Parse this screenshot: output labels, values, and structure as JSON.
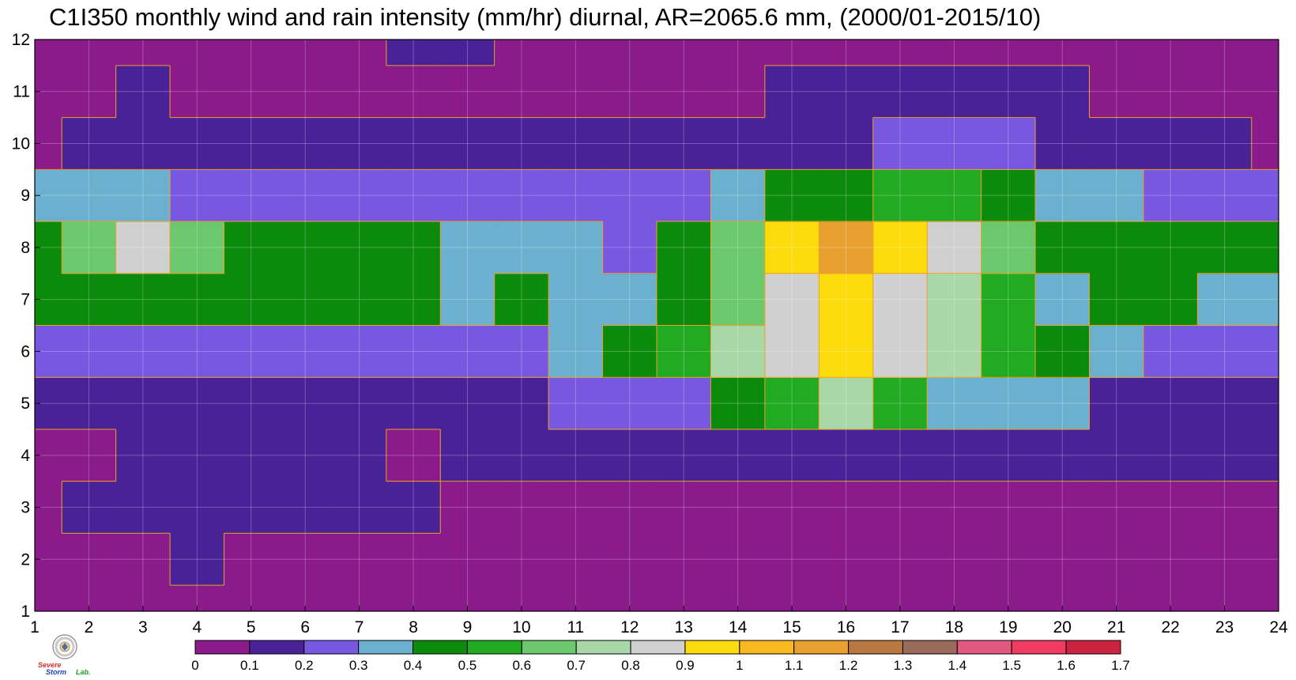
{
  "chart_data": {
    "type": "heatmap",
    "title": "C1I350 monthly wind and rain intensity (mm/hr) diurnal, AR=2065.6 mm, (2000/01-2015/10)",
    "xlabel": "",
    "ylabel": "",
    "x_ticks": [
      1,
      2,
      3,
      4,
      5,
      6,
      7,
      8,
      9,
      10,
      11,
      12,
      13,
      14,
      15,
      16,
      17,
      18,
      19,
      20,
      21,
      22,
      23,
      24
    ],
    "y_ticks": [
      1,
      2,
      3,
      4,
      5,
      6,
      7,
      8,
      9,
      10,
      11,
      12
    ],
    "xlim": [
      1,
      24
    ],
    "ylim": [
      1,
      12
    ],
    "grid": true,
    "contour_levels": [
      0,
      0.1,
      0.2,
      0.3,
      0.4,
      0.5,
      0.6,
      0.7,
      0.8,
      0.9,
      1,
      1.1,
      1.2,
      1.3,
      1.4,
      1.5,
      1.6,
      1.7
    ],
    "colorbar_tick_labels": [
      "0",
      "0.1",
      "0.2",
      "0.3",
      "0.4",
      "0.5",
      "0.6",
      "0.7",
      "0.8",
      "0.9",
      "1",
      "1.1",
      "1.2",
      "1.3",
      "1.4",
      "1.5",
      "1.6",
      "1.7"
    ],
    "colorbar_colors": [
      "#8b1a8b",
      "#4a2298",
      "#7858e0",
      "#6cb0d0",
      "#0c8a0c",
      "#22aa22",
      "#6cc86c",
      "#a8d8a8",
      "#d0d0d0",
      "#fcdc0c",
      "#f8b820",
      "#e8a030",
      "#b87840",
      "#9a6a5a",
      "#e05880",
      "#f03c60",
      "#cc2440"
    ],
    "contour_line_color": "#f0a020",
    "rows_y_1_to_12_cols_x_1_to_24": [
      [
        0.05,
        0.05,
        0.05,
        0.05,
        0.05,
        0.05,
        0.05,
        0.05,
        0.05,
        0.05,
        0.05,
        0.05,
        0.05,
        0.05,
        0.05,
        0.05,
        0.05,
        0.05,
        0.05,
        0.05,
        0.05,
        0.05,
        0.05,
        0.05
      ],
      [
        0.05,
        0.05,
        0.05,
        0.15,
        0.05,
        0.05,
        0.05,
        0.05,
        0.05,
        0.05,
        0.05,
        0.05,
        0.05,
        0.05,
        0.05,
        0.05,
        0.05,
        0.05,
        0.05,
        0.05,
        0.05,
        0.05,
        0.05,
        0.05
      ],
      [
        0.05,
        0.15,
        0.15,
        0.15,
        0.15,
        0.15,
        0.15,
        0.15,
        0.05,
        0.05,
        0.05,
        0.05,
        0.05,
        0.05,
        0.05,
        0.05,
        0.05,
        0.05,
        0.05,
        0.05,
        0.05,
        0.05,
        0.05,
        0.05
      ],
      [
        0.05,
        0.05,
        0.15,
        0.15,
        0.15,
        0.15,
        0.15,
        0.05,
        0.15,
        0.15,
        0.15,
        0.15,
        0.15,
        0.15,
        0.15,
        0.15,
        0.15,
        0.15,
        0.15,
        0.15,
        0.15,
        0.15,
        0.15,
        0.15
      ],
      [
        0.15,
        0.15,
        0.15,
        0.15,
        0.15,
        0.15,
        0.15,
        0.15,
        0.15,
        0.15,
        0.25,
        0.25,
        0.25,
        0.45,
        0.55,
        0.75,
        0.55,
        0.35,
        0.35,
        0.35,
        0.15,
        0.15,
        0.15,
        0.15
      ],
      [
        0.25,
        0.25,
        0.25,
        0.25,
        0.25,
        0.25,
        0.25,
        0.25,
        0.25,
        0.25,
        0.35,
        0.45,
        0.55,
        0.75,
        0.85,
        0.95,
        0.85,
        0.75,
        0.55,
        0.45,
        0.35,
        0.25,
        0.25,
        0.25
      ],
      [
        0.45,
        0.45,
        0.45,
        0.45,
        0.45,
        0.45,
        0.45,
        0.45,
        0.35,
        0.45,
        0.35,
        0.35,
        0.45,
        0.65,
        0.85,
        0.95,
        0.85,
        0.75,
        0.55,
        0.35,
        0.45,
        0.45,
        0.35,
        0.35
      ],
      [
        0.45,
        0.65,
        0.85,
        0.65,
        0.45,
        0.45,
        0.45,
        0.45,
        0.35,
        0.35,
        0.35,
        0.25,
        0.45,
        0.65,
        0.95,
        1.15,
        0.95,
        0.85,
        0.65,
        0.45,
        0.45,
        0.45,
        0.45,
        0.45
      ],
      [
        0.35,
        0.35,
        0.35,
        0.25,
        0.25,
        0.25,
        0.25,
        0.25,
        0.25,
        0.25,
        0.25,
        0.25,
        0.25,
        0.35,
        0.45,
        0.45,
        0.55,
        0.55,
        0.45,
        0.35,
        0.35,
        0.25,
        0.25,
        0.25
      ],
      [
        0.05,
        0.15,
        0.15,
        0.15,
        0.15,
        0.15,
        0.15,
        0.15,
        0.15,
        0.15,
        0.15,
        0.15,
        0.15,
        0.15,
        0.15,
        0.15,
        0.25,
        0.25,
        0.25,
        0.15,
        0.15,
        0.15,
        0.15,
        0.05
      ],
      [
        0.05,
        0.05,
        0.15,
        0.05,
        0.05,
        0.05,
        0.05,
        0.05,
        0.05,
        0.05,
        0.05,
        0.05,
        0.05,
        0.05,
        0.15,
        0.15,
        0.15,
        0.15,
        0.15,
        0.15,
        0.05,
        0.05,
        0.05,
        0.05
      ],
      [
        0.05,
        0.05,
        0.05,
        0.05,
        0.05,
        0.05,
        0.05,
        0.15,
        0.15,
        0.05,
        0.05,
        0.05,
        0.05,
        0.05,
        0.05,
        0.05,
        0.05,
        0.05,
        0.05,
        0.05,
        0.05,
        0.05,
        0.05,
        0.05
      ]
    ]
  },
  "logo": {
    "line1": "Severe",
    "line2": "Storm",
    "line3": "Lab."
  }
}
